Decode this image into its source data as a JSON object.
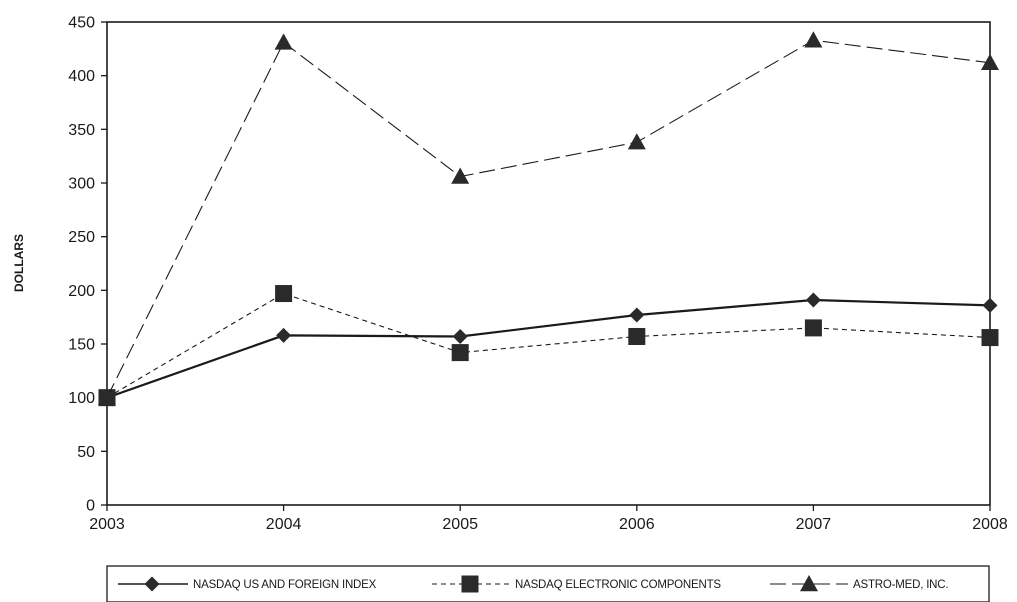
{
  "chart_data": {
    "type": "line",
    "title": "",
    "xlabel": "",
    "ylabel": "DOLLARS",
    "x": [
      "2003",
      "2004",
      "2005",
      "2006",
      "2007",
      "2008"
    ],
    "ylim": [
      0,
      450
    ],
    "yticks": [
      0,
      50,
      100,
      150,
      200,
      250,
      300,
      350,
      400,
      450
    ],
    "grid": false,
    "legend_position": "bottom",
    "series": [
      {
        "name": "NASDAQ US AND FOREIGN INDEX",
        "marker": "diamond",
        "line_style": "solid",
        "values": [
          100,
          158,
          157,
          177,
          191,
          186
        ]
      },
      {
        "name": "NASDAQ ELECTRONIC COMPONENTS",
        "marker": "square",
        "line_style": "short-dash",
        "values": [
          100,
          197,
          142,
          157,
          165,
          156
        ]
      },
      {
        "name": "ASTRO-MED, INC.",
        "marker": "triangle",
        "line_style": "long-dash",
        "values": [
          100,
          431,
          306,
          338,
          433,
          412
        ]
      }
    ],
    "colors": {
      "line": "#1a1a1a",
      "marker": "#2a2a2a"
    }
  }
}
